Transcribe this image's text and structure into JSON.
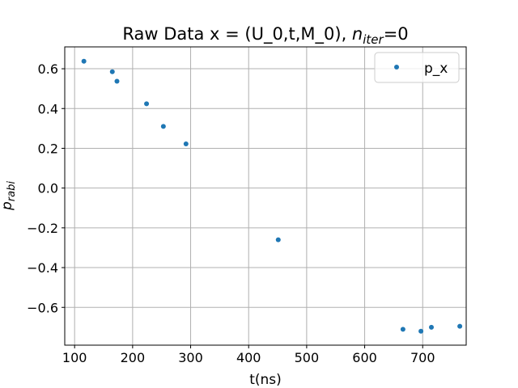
{
  "chart_data": {
    "type": "scatter",
    "title": "Raw Data x = (U_0,t,M_0),  ",
    "title_math_symbol": "n",
    "title_math_subscript": "iter",
    "title_math_value": "=0",
    "xlabel": "t(ns)",
    "ylabel_symbol": "p",
    "ylabel_subscript": "rabi",
    "xlim": [
      83,
      775
    ],
    "ylim": [
      -0.79,
      0.71
    ],
    "x_ticks": [
      100,
      200,
      300,
      400,
      500,
      600,
      700
    ],
    "x_tick_labels": [
      "100",
      "200",
      "300",
      "400",
      "500",
      "600",
      "700"
    ],
    "y_ticks": [
      0.6,
      0.4,
      0.2,
      0.0,
      -0.2,
      -0.4,
      -0.6
    ],
    "y_tick_labels": [
      "0.6",
      "0.4",
      "0.2",
      "0.0",
      "−0.2",
      "−0.4",
      "−0.6"
    ],
    "grid": true,
    "legend_position": "top-right",
    "series": [
      {
        "name": "p_x",
        "color": "#1f77b4",
        "x": [
          116,
          165,
          173,
          224,
          253,
          292,
          451,
          666,
          697,
          715,
          764
        ],
        "y": [
          0.638,
          0.585,
          0.537,
          0.424,
          0.31,
          0.222,
          -0.26,
          -0.71,
          -0.72,
          -0.7,
          -0.695
        ]
      }
    ]
  }
}
